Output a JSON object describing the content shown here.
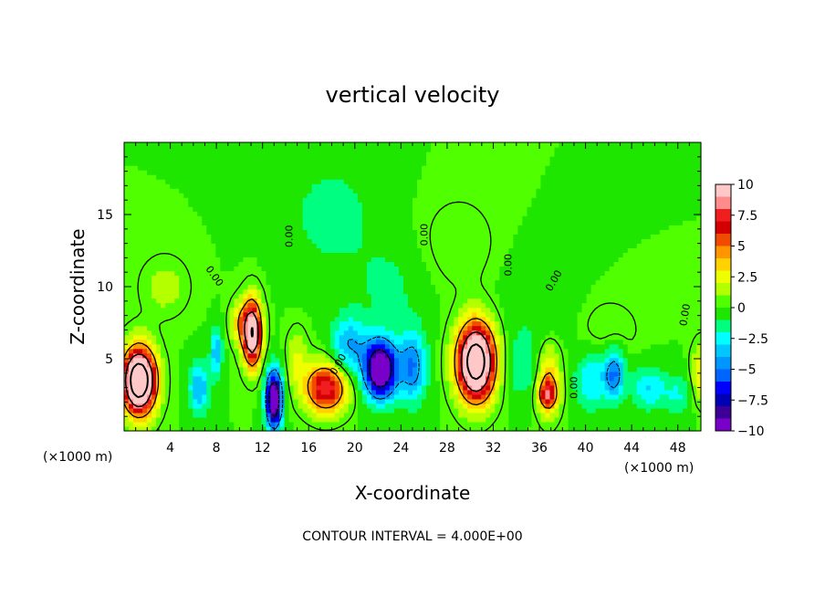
{
  "chart_data": {
    "type": "heatmap",
    "title": "vertical velocity",
    "xlabel": "X-coordinate",
    "ylabel": "Z-coordinate",
    "x_unit_left": "(×1000 m)",
    "x_unit_right": "(×1000 m)",
    "xlim": [
      0,
      50
    ],
    "ylim": [
      0,
      20
    ],
    "x_ticks": [
      4,
      8,
      12,
      16,
      20,
      24,
      28,
      32,
      36,
      40,
      44,
      48
    ],
    "y_ticks": [
      5,
      10,
      15
    ],
    "colorbar": {
      "range": [
        -10,
        10
      ],
      "ticks": [
        "10",
        "7.5",
        "5",
        "2.5",
        "0",
        "−2.5",
        "−5",
        "−7.5",
        "−10"
      ],
      "colors": [
        "#ffc8c8",
        "#ff8c8c",
        "#f01e1e",
        "#d20000",
        "#f04b00",
        "#ff9600",
        "#ffd200",
        "#f0ff00",
        "#b4ff00",
        "#50ff00",
        "#1ee600",
        "#00ff80",
        "#00ffff",
        "#00c8ff",
        "#0096ff",
        "#0064ff",
        "#0000ff",
        "#0000b4",
        "#3c0096",
        "#7800c8"
      ]
    },
    "features": [
      {
        "x": 1.3,
        "z": 3.5,
        "amp": 16,
        "sx": 1.4,
        "sz": 2.2
      },
      {
        "x": 6.5,
        "z": 3.0,
        "amp": -4,
        "sx": 0.9,
        "sz": 1.8
      },
      {
        "x": 8.0,
        "z": 5.5,
        "amp": -4,
        "sx": 0.5,
        "sz": 1.6
      },
      {
        "x": 10.0,
        "z": 7.5,
        "amp": 3,
        "sx": 0.8,
        "sz": 1.5
      },
      {
        "x": 11.1,
        "z": 6.8,
        "amp": 12,
        "sx": 0.8,
        "sz": 2.2
      },
      {
        "x": 13.0,
        "z": 2.2,
        "amp": -12,
        "sx": 0.7,
        "sz": 2.0
      },
      {
        "x": 15.0,
        "z": 5.0,
        "amp": 2,
        "sx": 0.9,
        "sz": 2.0
      },
      {
        "x": 17.5,
        "z": 3.0,
        "amp": 8,
        "sx": 1.8,
        "sz": 1.7
      },
      {
        "x": 19.5,
        "z": 6.0,
        "amp": -4,
        "sx": 1.5,
        "sz": 2.0
      },
      {
        "x": 22.2,
        "z": 4.3,
        "amp": -12,
        "sx": 1.4,
        "sz": 2.0
      },
      {
        "x": 25.0,
        "z": 4.5,
        "amp": -5,
        "sx": 1.2,
        "sz": 2.5
      },
      {
        "x": 30.5,
        "z": 4.8,
        "amp": 15,
        "sx": 1.6,
        "sz": 2.6
      },
      {
        "x": 34.5,
        "z": 4.5,
        "amp": -2,
        "sx": 1.5,
        "sz": 2.2
      },
      {
        "x": 36.8,
        "z": 3.5,
        "amp": 4,
        "sx": 1.0,
        "sz": 2.4
      },
      {
        "x": 36.7,
        "z": 2.5,
        "amp": 5,
        "sx": 0.8,
        "sz": 1.0
      },
      {
        "x": 40.5,
        "z": 3.5,
        "amp": -3,
        "sx": 1.4,
        "sz": 2.0
      },
      {
        "x": 42.5,
        "z": 4.0,
        "amp": -5,
        "sx": 0.9,
        "sz": 1.8
      },
      {
        "x": 45.5,
        "z": 3.0,
        "amp": -3,
        "sx": 1.5,
        "sz": 1.5
      },
      {
        "x": 48.0,
        "z": 2.5,
        "amp": -2,
        "sx": 1.2,
        "sz": 1.5
      },
      {
        "x": 50.0,
        "z": 4.0,
        "amp": 3,
        "sx": 0.8,
        "sz": 2.0
      },
      {
        "x": 3.5,
        "z": 10.0,
        "amp": 1.5,
        "sx": 2.0,
        "sz": 2.0
      },
      {
        "x": 18.0,
        "z": 15.0,
        "amp": -1.5,
        "sx": 4.0,
        "sz": 4.0
      },
      {
        "x": 23.0,
        "z": 10.0,
        "amp": -1.2,
        "sx": 3.0,
        "sz": 3.0
      },
      {
        "x": 29.0,
        "z": 13.0,
        "amp": 1.0,
        "sx": 3.0,
        "sz": 3.0
      },
      {
        "x": 36.0,
        "z": 9.0,
        "amp": -1.0,
        "sx": 3.0,
        "sz": 3.0
      },
      {
        "x": 42.0,
        "z": 7.0,
        "amp": 1.0,
        "sx": 2.5,
        "sz": 2.0
      }
    ],
    "contour_labels": [
      {
        "text": "0.00",
        "x": 7.6,
        "z": 10.6,
        "angle": 55
      },
      {
        "text": "0.00",
        "x": 14.6,
        "z": 13.5,
        "angle": -90
      },
      {
        "text": "0.00",
        "x": 26.3,
        "z": 13.6,
        "angle": -90
      },
      {
        "text": "0.00",
        "x": 33.6,
        "z": 11.5,
        "angle": -90
      },
      {
        "text": "0.00",
        "x": 37.5,
        "z": 10.3,
        "angle": -60
      },
      {
        "text": "0.00",
        "x": 18.8,
        "z": 4.5,
        "angle": -60
      },
      {
        "text": "0.00",
        "x": 39.3,
        "z": 3.0,
        "angle": -90
      },
      {
        "text": "0.00",
        "x": 48.9,
        "z": 8.0,
        "angle": -80
      }
    ]
  },
  "contour_note": "CONTOUR INTERVAL = 4.000E+00"
}
